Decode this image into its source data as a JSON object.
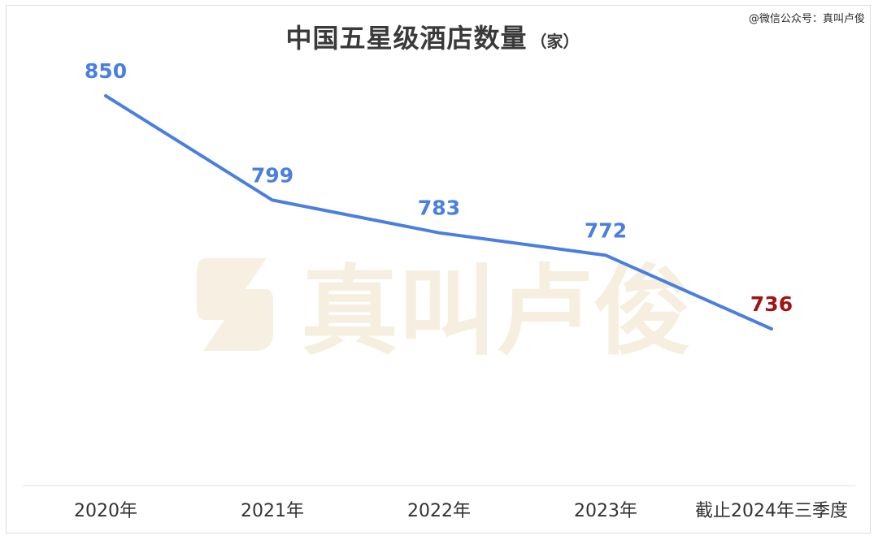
{
  "credit": "@微信公众号：真叫卢俊",
  "watermark": {
    "text": "真叫卢俊",
    "color": "#f6efe0"
  },
  "chart_data": {
    "type": "line",
    "title": "中国五星级酒店数量",
    "unit": "（家）",
    "categories": [
      "2020年",
      "2021年",
      "2022年",
      "2023年",
      "截止2024年三季度"
    ],
    "series": [
      {
        "values": [
          850,
          799,
          783,
          772,
          736
        ],
        "color": "#4a7fe0"
      }
    ],
    "value_label_colors": [
      "#4a7fe0",
      "#4a7fe0",
      "#4a7fe0",
      "#4a7fe0",
      "#a11414"
    ],
    "drop_lines": true,
    "grid": false,
    "legend": "none"
  }
}
